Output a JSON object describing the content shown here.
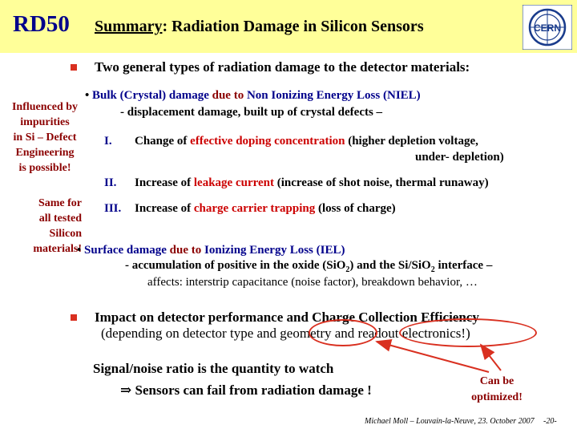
{
  "header": {
    "logo_text": "RD50",
    "title_prefix": "Summary",
    "title_rest": ": Radiation Damage in Silicon Sensors",
    "cern_logo_text": "CERN"
  },
  "intro": "Two general types of radiation damage to the detector materials:",
  "side_note_1": [
    "Influenced by",
    "impurities",
    "in Si – Defect",
    "Engineering",
    "is possible!"
  ],
  "side_note_2": [
    "Same for",
    "all tested",
    "Silicon",
    "materials!"
  ],
  "bulk": {
    "bullet": "•",
    "part1": "Bulk (Crystal) damage",
    "part2": "due to",
    "part3": "Non Ionizing Energy Loss (NIEL)",
    "line2": "- displacement damage, built up of crystal defects –",
    "items": [
      {
        "num": "I.",
        "pre": "Change of",
        "hl": "effective doping concentration",
        "post": "(higher depletion voltage,",
        "line2": "under- depletion)"
      },
      {
        "num": "II.",
        "pre": "Increase of",
        "hl": "leakage current",
        "post": "(increase of shot noise, thermal runaway)"
      },
      {
        "num": "III.",
        "pre": "Increase of",
        "hl": "charge carrier trapping",
        "post": "(loss of charge)"
      }
    ]
  },
  "surface": {
    "bullet": "•",
    "part1": "Surface damage",
    "part2": "due to",
    "part3": "Ionizing Energy Loss (IEL)",
    "line2_a": "- accumulation of positive in the oxide (SiO",
    "line2_sub1": "2",
    "line2_b": ") and the Si/SiO",
    "line2_sub2": "2",
    "line2_c": " interface –",
    "line3": "affects:  interstrip capacitance (noise factor), breakdown behavior, …"
  },
  "impact": {
    "line1": "Impact on detector performance and Charge Collection Efficiency",
    "line2_a": "(depending on detector type and",
    "line2_geo": "geometry",
    "line2_and": "and",
    "line2_ro": "readout electronics!",
    "line2_end": ")"
  },
  "signal": {
    "line1": "Signal/noise ratio is the quantity to watch",
    "arrow": "⇒",
    "line2": "Sensors can fail from radiation damage !"
  },
  "optimized": [
    "Can be",
    "optimized!"
  ],
  "footer": {
    "credit": "Michael Moll – Louvain-la-Neuve, 23. October 2007",
    "page": "-20-"
  },
  "colors": {
    "header_bg": "#ffff99",
    "blue": "#00008b",
    "red": "#cc0000",
    "bullet": "#d93020"
  }
}
